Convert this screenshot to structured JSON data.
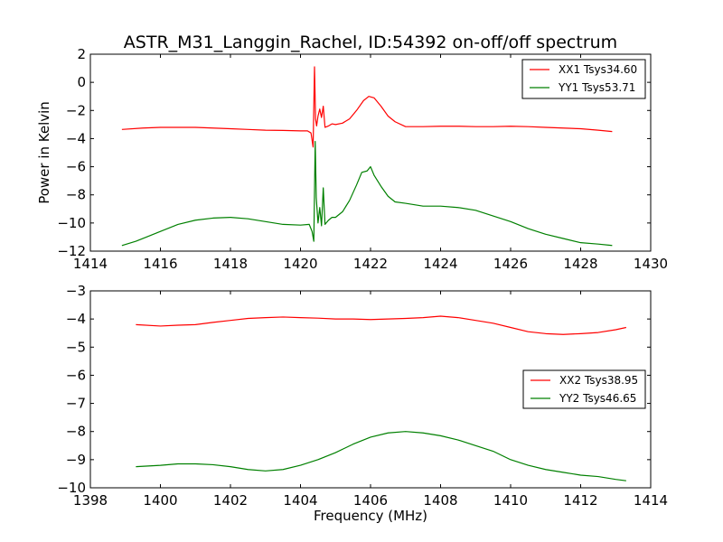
{
  "title": "ASTR_M31_Langgin_Rachel, ID:54392 on-off/off spectrum",
  "ylabel": "Power in Kelvin",
  "xlabel": "Frequency (MHz)",
  "chart_data": [
    {
      "type": "line",
      "xlim": [
        1414,
        1430
      ],
      "ylim": [
        -12,
        2
      ],
      "xticks": [
        1414,
        1416,
        1418,
        1420,
        1422,
        1424,
        1426,
        1428,
        1430
      ],
      "yticks": [
        -12,
        -10,
        -8,
        -6,
        -4,
        -2,
        0,
        2
      ],
      "legend_position": "top-right",
      "series": [
        {
          "name": "XX1 Tsys34.60",
          "color": "#ff0000",
          "x": [
            1414.9,
            1415.5,
            1416,
            1416.5,
            1417,
            1417.5,
            1418,
            1418.5,
            1419,
            1419.5,
            1420,
            1420.2,
            1420.3,
            1420.36,
            1420.4,
            1420.43,
            1420.46,
            1420.5,
            1420.55,
            1420.6,
            1420.65,
            1420.7,
            1420.8,
            1420.9,
            1421,
            1421.2,
            1421.4,
            1421.6,
            1421.8,
            1421.95,
            1422.1,
            1422.3,
            1422.5,
            1422.7,
            1423,
            1423.5,
            1424,
            1424.5,
            1425,
            1425.5,
            1426,
            1426.5,
            1427,
            1427.5,
            1428,
            1428.5,
            1428.9
          ],
          "y": [
            -3.35,
            -3.25,
            -3.2,
            -3.2,
            -3.2,
            -3.25,
            -3.3,
            -3.35,
            -3.4,
            -3.42,
            -3.45,
            -3.45,
            -3.6,
            -4.6,
            1.1,
            -2.6,
            -3.1,
            -2.4,
            -1.9,
            -2.5,
            -1.7,
            -3.2,
            -3.1,
            -2.95,
            -3.0,
            -2.9,
            -2.6,
            -2.0,
            -1.3,
            -1.0,
            -1.1,
            -1.7,
            -2.4,
            -2.8,
            -3.15,
            -3.15,
            -3.12,
            -3.12,
            -3.15,
            -3.15,
            -3.12,
            -3.15,
            -3.2,
            -3.25,
            -3.3,
            -3.4,
            -3.5
          ]
        },
        {
          "name": "YY1 Tsys53.71",
          "color": "#008000",
          "x": [
            1414.9,
            1415.3,
            1415.6,
            1416,
            1416.5,
            1417,
            1417.5,
            1418,
            1418.5,
            1419,
            1419.5,
            1420,
            1420.25,
            1420.33,
            1420.38,
            1420.42,
            1420.45,
            1420.5,
            1420.55,
            1420.6,
            1420.65,
            1420.7,
            1420.8,
            1420.9,
            1421,
            1421.2,
            1421.4,
            1421.6,
            1421.75,
            1421.9,
            1422,
            1422.1,
            1422.3,
            1422.5,
            1422.7,
            1423,
            1423.5,
            1424,
            1424.5,
            1425,
            1425.5,
            1426,
            1426.5,
            1427,
            1427.5,
            1428,
            1428.5,
            1428.9
          ],
          "y": [
            -11.6,
            -11.3,
            -11.0,
            -10.6,
            -10.1,
            -9.8,
            -9.65,
            -9.6,
            -9.7,
            -9.9,
            -10.1,
            -10.15,
            -10.1,
            -10.6,
            -11.3,
            -4.2,
            -8.2,
            -10.0,
            -8.9,
            -10.2,
            -7.5,
            -10.1,
            -9.8,
            -9.6,
            -9.6,
            -9.2,
            -8.4,
            -7.3,
            -6.4,
            -6.3,
            -6.0,
            -6.6,
            -7.4,
            -8.1,
            -8.5,
            -8.6,
            -8.8,
            -8.8,
            -8.9,
            -9.1,
            -9.5,
            -9.9,
            -10.4,
            -10.8,
            -11.1,
            -11.4,
            -11.5,
            -11.6
          ]
        }
      ]
    },
    {
      "type": "line",
      "xlim": [
        1398,
        1414
      ],
      "ylim": [
        -10,
        -3
      ],
      "xticks": [
        1398,
        1400,
        1402,
        1404,
        1406,
        1408,
        1410,
        1412,
        1414
      ],
      "yticks": [
        -10,
        -9,
        -8,
        -7,
        -6,
        -5,
        -4,
        -3
      ],
      "legend_position": "center-right",
      "series": [
        {
          "name": "XX2 Tsys38.95",
          "color": "#ff0000",
          "x": [
            1399.3,
            1400,
            1400.5,
            1401,
            1401.5,
            1402,
            1402.5,
            1403,
            1403.5,
            1404,
            1404.5,
            1405,
            1405.5,
            1406,
            1406.5,
            1407,
            1407.5,
            1408,
            1408.5,
            1409,
            1409.5,
            1410,
            1410.5,
            1411,
            1411.5,
            1412,
            1412.5,
            1413,
            1413.3
          ],
          "y": [
            -4.2,
            -4.25,
            -4.22,
            -4.2,
            -4.12,
            -4.05,
            -3.98,
            -3.95,
            -3.93,
            -3.95,
            -3.97,
            -4.0,
            -4.0,
            -4.02,
            -4.0,
            -3.98,
            -3.95,
            -3.9,
            -3.95,
            -4.05,
            -4.15,
            -4.3,
            -4.45,
            -4.52,
            -4.55,
            -4.52,
            -4.48,
            -4.38,
            -4.3
          ]
        },
        {
          "name": "YY2 Tsys46.65",
          "color": "#008000",
          "x": [
            1399.3,
            1400,
            1400.5,
            1401,
            1401.5,
            1402,
            1402.5,
            1403,
            1403.5,
            1404,
            1404.5,
            1405,
            1405.5,
            1406,
            1406.5,
            1407,
            1407.5,
            1408,
            1408.5,
            1409,
            1409.5,
            1410,
            1410.5,
            1411,
            1411.5,
            1412,
            1412.5,
            1413,
            1413.3
          ],
          "y": [
            -9.25,
            -9.2,
            -9.15,
            -9.15,
            -9.18,
            -9.25,
            -9.35,
            -9.4,
            -9.35,
            -9.2,
            -9.0,
            -8.75,
            -8.45,
            -8.2,
            -8.05,
            -8.0,
            -8.05,
            -8.15,
            -8.3,
            -8.5,
            -8.7,
            -9.0,
            -9.2,
            -9.35,
            -9.45,
            -9.55,
            -9.6,
            -9.7,
            -9.75
          ]
        }
      ]
    }
  ]
}
